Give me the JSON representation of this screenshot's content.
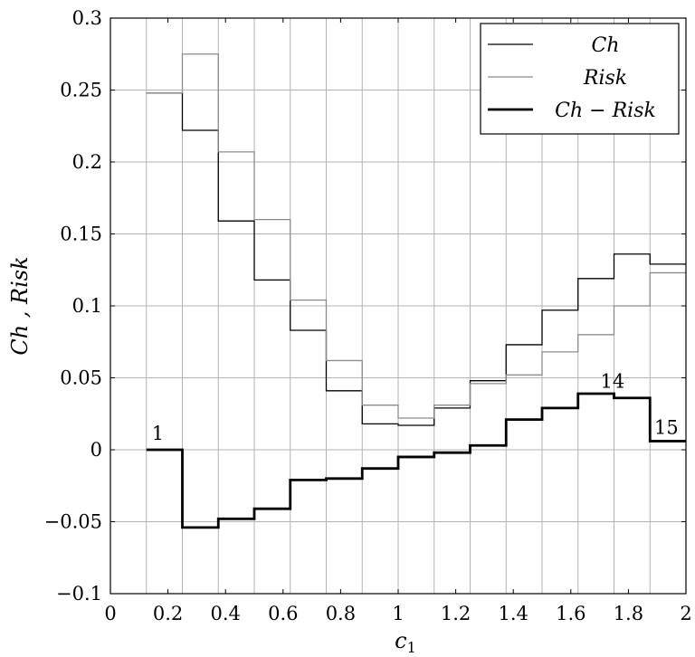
{
  "chart_data": {
    "type": "line",
    "step": true,
    "xlabel": "c",
    "xlabel_sub": "1",
    "ylabel": "Ch , Risk",
    "xlim": [
      0,
      2
    ],
    "ylim": [
      -0.1,
      0.3
    ],
    "x_ticks": [
      0,
      0.2,
      0.4,
      0.6,
      0.8,
      1,
      1.2,
      1.4,
      1.6,
      1.8,
      2
    ],
    "x_tick_labels": [
      "0",
      "0.2",
      "0.4",
      "0.6",
      "0.8",
      "1",
      "1.2",
      "1.4",
      "1.6",
      "1.8",
      "2"
    ],
    "y_ticks": [
      -0.1,
      -0.05,
      0,
      0.05,
      0.1,
      0.15,
      0.2,
      0.25,
      0.3
    ],
    "y_tick_labels": [
      "−0.1",
      "−0.05",
      "0",
      "0.05",
      "0.1",
      "0.15",
      "0.2",
      "0.25",
      "0.3"
    ],
    "x_grid": [
      0.125,
      0.25,
      0.375,
      0.5,
      0.625,
      0.75,
      0.875,
      1,
      1.125,
      1.25,
      1.375,
      1.5,
      1.625,
      1.75,
      1.875,
      2
    ],
    "y_grid": [
      -0.1,
      -0.05,
      0,
      0.05,
      0.1,
      0.15,
      0.2,
      0.25,
      0.3
    ],
    "grid": true,
    "legend_position": "top-right",
    "series": [
      {
        "name": "Ch",
        "color": "#000000",
        "width": "thin",
        "x": [
          0.125,
          0.25,
          0.375,
          0.5,
          0.625,
          0.75,
          0.875,
          1,
          1.125,
          1.25,
          1.375,
          1.5,
          1.625,
          1.75,
          1.875,
          2
        ],
        "y": [
          0.248,
          0.222,
          0.159,
          0.118,
          0.083,
          0.041,
          0.018,
          0.017,
          0.029,
          0.048,
          0.073,
          0.097,
          0.119,
          0.136,
          0.129,
          0.129
        ]
      },
      {
        "name": "Risk",
        "color": "#8c8c8c",
        "width": "thin",
        "x": [
          0.125,
          0.25,
          0.375,
          0.5,
          0.625,
          0.75,
          0.875,
          1,
          1.125,
          1.25,
          1.375,
          1.5,
          1.625,
          1.75,
          1.875,
          2
        ],
        "y": [
          0.248,
          0.275,
          0.207,
          0.16,
          0.104,
          0.062,
          0.031,
          0.022,
          0.031,
          0.046,
          0.052,
          0.068,
          0.08,
          0.1,
          0.123,
          0.123
        ]
      },
      {
        "name": "Ch − Risk",
        "color": "#000000",
        "width": "thick",
        "x": [
          0.125,
          0.25,
          0.375,
          0.5,
          0.625,
          0.75,
          0.875,
          1,
          1.125,
          1.25,
          1.375,
          1.5,
          1.625,
          1.75,
          1.875,
          2
        ],
        "y": [
          0.0,
          -0.054,
          -0.048,
          -0.041,
          -0.021,
          -0.02,
          -0.013,
          -0.005,
          -0.002,
          0.003,
          0.021,
          0.029,
          0.039,
          0.036,
          0.006,
          0.006
        ]
      }
    ],
    "annotations": [
      {
        "text": "1",
        "x": 0.165,
        "y": 0.007
      },
      {
        "text": "14",
        "x": 1.745,
        "y": 0.043
      },
      {
        "text": "15",
        "x": 1.932,
        "y": 0.011
      }
    ]
  }
}
